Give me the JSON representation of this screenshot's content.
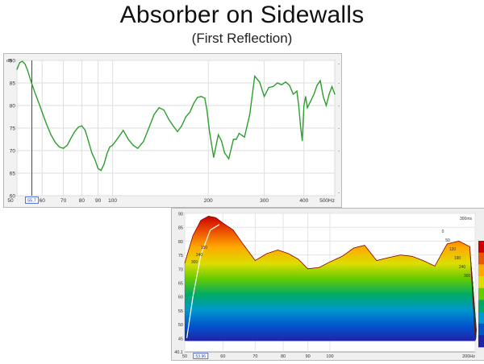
{
  "slide": {
    "title": "Absorber on Sidewalls",
    "subtitle": "(First Reflection)"
  },
  "chart_data": [
    {
      "type": "line",
      "title": "",
      "y_unit": "dB",
      "x_unit": "Hz",
      "xscale": "log",
      "xlim": [
        50,
        500
      ],
      "ylim": [
        60,
        90
      ],
      "x_ticks": [
        "60",
        "70",
        "80",
        "90",
        "100",
        "200",
        "300",
        "400",
        "500Hz"
      ],
      "y_ticks": [
        "60",
        "65",
        "70",
        "75",
        "80",
        "85",
        "90"
      ],
      "cursor_readout": "55.7",
      "grid": true,
      "series": [
        {
          "color": "#2e9e2e",
          "x": [
            50,
            51,
            52,
            53,
            54,
            55,
            56,
            57,
            58,
            59,
            60,
            62,
            64,
            66,
            68,
            70,
            72,
            74,
            76,
            78,
            80,
            82,
            84,
            86,
            88,
            90,
            92,
            94,
            96,
            98,
            100,
            104,
            108,
            112,
            116,
            120,
            125,
            130,
            135,
            140,
            145,
            150,
            155,
            160,
            165,
            170,
            175,
            180,
            185,
            190,
            195,
            198,
            202,
            208,
            215,
            220,
            225,
            232,
            240,
            245,
            250,
            260,
            270,
            280,
            290,
            300,
            310,
            320,
            330,
            340,
            350,
            360,
            370,
            380,
            385,
            390,
            395,
            400,
            405,
            410,
            420,
            430,
            440,
            450,
            460,
            470,
            480,
            490,
            500
          ],
          "y": [
            88,
            89.5,
            89.8,
            89.2,
            87.8,
            86,
            84.3,
            82.8,
            81.4,
            80,
            78.5,
            75.8,
            73.5,
            71.8,
            70.8,
            70.5,
            71.2,
            72.8,
            74.2,
            75.2,
            75.5,
            74.5,
            72,
            69.5,
            68,
            66,
            65.6,
            67,
            69.3,
            70.8,
            71.2,
            72.8,
            74.5,
            72.5,
            71.2,
            70.5,
            72,
            75,
            78,
            79.5,
            79,
            77,
            75.5,
            74.2,
            75.5,
            77.5,
            78.5,
            80.5,
            81.8,
            82,
            81.6,
            79,
            74,
            68.5,
            73.5,
            72.2,
            69.5,
            68.2,
            72.5,
            72.5,
            73.8,
            73,
            78,
            86.5,
            85.2,
            82,
            84,
            84.2,
            85,
            84.6,
            85.2,
            84.5,
            82.5,
            83.2,
            80,
            75.5,
            72.2,
            80,
            82,
            79.5,
            81,
            82.5,
            84.5,
            85.5,
            82,
            80,
            82.5,
            84.2,
            82.5
          ]
        }
      ]
    },
    {
      "type": "area",
      "subtype": "waterfall",
      "xscale": "log",
      "xlim": [
        50,
        200
      ],
      "ylim": [
        40,
        90
      ],
      "x_ticks": [
        "50",
        "60",
        "70",
        "80",
        "90",
        "100",
        "200Hz"
      ],
      "y_ticks": [
        "40.1",
        "45",
        "50",
        "55",
        "60",
        "65",
        "70",
        "75",
        "80",
        "85",
        "90"
      ],
      "time_labels": [
        "0",
        "50",
        "120",
        "190",
        "240",
        "300"
      ],
      "time_unit_label": "300ms",
      "left_time_labels": [
        "150",
        "240",
        "300"
      ],
      "cursor_readout": "53.96",
      "colorbar": [
        "#cc0000",
        "#ee5500",
        "#ffaa00",
        "#dddd00",
        "#66cc00",
        "#00aa66",
        "#0099cc",
        "#0055cc",
        "#2222aa"
      ],
      "front_slice": {
        "x": [
          50,
          52,
          54,
          56,
          58,
          60,
          63,
          66,
          70,
          74,
          78,
          82,
          86,
          90,
          95,
          100,
          106,
          112,
          118,
          125,
          132,
          140,
          148,
          156,
          165,
          175,
          185,
          195,
          200
        ],
        "y": [
          72,
          82,
          87.5,
          89,
          88.5,
          86.5,
          84,
          79,
          73,
          75.5,
          76.8,
          75.5,
          73.5,
          70,
          70.5,
          72.5,
          74.5,
          77.5,
          78.5,
          73,
          74,
          75,
          74.5,
          73,
          71,
          79,
          80,
          78,
          46
        ]
      }
    }
  ]
}
